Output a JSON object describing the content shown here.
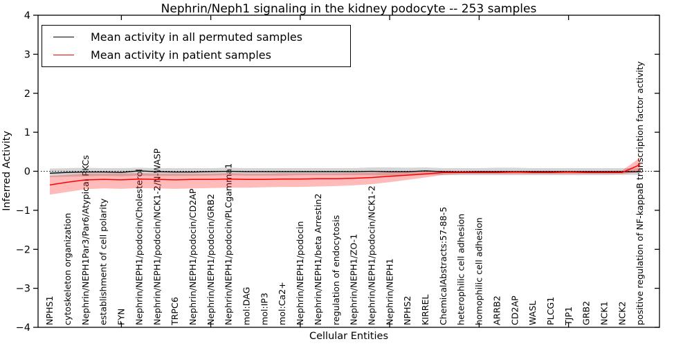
{
  "title": "Nephrin/Neph1 signaling in the kidney podocyte -- 253 samples",
  "colors": {
    "frame": "#000000",
    "permuted_line": "#000000",
    "patient_line": "#ff0000",
    "permuted_band": "rgba(125,125,125,0.32)",
    "patient_band": "rgba(255,0,0,0.27)",
    "zero_line": "#000000"
  },
  "chart_data": {
    "type": "line",
    "title": "Nephrin/Neph1 signaling in the kidney podocyte -- 253 samples",
    "xlabel": "Cellular Entities",
    "ylabel": "Inferred Activity",
    "ylim": [
      -4,
      4
    ],
    "yticks": [
      -4,
      -3,
      -2,
      -1,
      0,
      1,
      2,
      3,
      4
    ],
    "x_tick_every": 5,
    "grid": false,
    "zero_line": true,
    "legend_position": "upper left",
    "categories": [
      "NPHS1",
      "cytoskeleton organization",
      "Nephrin/NEPH1Par3/Par6/Atypical PKCs",
      "establishment of cell polarity",
      "FYN",
      "Nephrin/NEPH1/podocin/Cholesterol",
      "Nephrin/NEPH1/podocin/NCK1-2/N-WASP",
      "TRPC6",
      "Nephrin/NEPH1/podocin/CD2AP",
      "Nephrin/NEPH1/podocin/GRB2",
      "Nephrin/NEPH1/podocin/PLCgamma1",
      "mol:DAG",
      "mol:IP3",
      "mol:Ca2+",
      "Nephrin/NEPH1/podocin",
      "Nephrin/NEPH1/beta Arrestin2",
      "regulation of endocytosis",
      "Nephrin/NEPH1/ZO-1",
      "Nephrin/NEPH1/podocin/NCK1-2",
      "Nephrin/NEPH1",
      "NPHS2",
      "KIRREL",
      "ChemicalAbstracts:57-88-5",
      "heterophilic cell adhesion",
      "homophilic cell adhesion",
      "ARRB2",
      "CD2AP",
      "WASL",
      "PLCG1",
      "TJP1",
      "GRB2",
      "NCK1",
      "NCK2",
      "positive regulation of NF-kappaB transcription factor activity"
    ],
    "series": [
      {
        "name": "Mean activity in all permuted samples",
        "color": "#000000",
        "values": [
          -0.05,
          -0.03,
          -0.02,
          -0.02,
          -0.03,
          0.01,
          -0.01,
          -0.02,
          -0.02,
          -0.01,
          0.0,
          -0.01,
          -0.01,
          -0.01,
          -0.01,
          -0.01,
          -0.01,
          -0.01,
          0.0,
          -0.01,
          -0.01,
          0.01,
          -0.01,
          -0.02,
          -0.01,
          -0.01,
          -0.01,
          -0.01,
          -0.01,
          -0.01,
          -0.01,
          -0.01,
          -0.01,
          -0.01
        ],
        "band_upper": [
          0.07,
          0.08,
          0.09,
          0.08,
          0.08,
          0.09,
          0.08,
          0.08,
          0.08,
          0.08,
          0.09,
          0.08,
          0.08,
          0.08,
          0.08,
          0.08,
          0.08,
          0.08,
          0.1,
          0.1,
          0.09,
          0.1,
          0.08,
          0.08,
          0.08,
          0.09,
          0.09,
          0.08,
          0.08,
          0.08,
          0.08,
          0.08,
          0.08,
          0.08
        ],
        "band_lower": [
          -0.15,
          -0.14,
          -0.13,
          -0.12,
          -0.13,
          -0.11,
          -0.12,
          -0.12,
          -0.12,
          -0.11,
          -0.1,
          -0.11,
          -0.11,
          -0.11,
          -0.1,
          -0.1,
          -0.1,
          -0.1,
          -0.1,
          -0.11,
          -0.1,
          -0.09,
          -0.1,
          -0.1,
          -0.1,
          -0.1,
          -0.1,
          -0.1,
          -0.1,
          -0.1,
          -0.1,
          -0.1,
          -0.09,
          -0.09
        ]
      },
      {
        "name": "Mean activity in patient samples",
        "color": "#ff0000",
        "values": [
          -0.35,
          -0.28,
          -0.22,
          -0.21,
          -0.22,
          -0.2,
          -0.21,
          -0.22,
          -0.21,
          -0.21,
          -0.2,
          -0.21,
          -0.21,
          -0.2,
          -0.2,
          -0.19,
          -0.19,
          -0.18,
          -0.16,
          -0.13,
          -0.1,
          -0.07,
          -0.03,
          -0.03,
          -0.03,
          -0.03,
          -0.02,
          -0.03,
          -0.03,
          -0.02,
          -0.03,
          -0.03,
          -0.03,
          0.17
        ],
        "band_upper": [
          -0.12,
          -0.09,
          -0.06,
          -0.06,
          -0.06,
          -0.05,
          -0.06,
          -0.06,
          -0.06,
          -0.06,
          -0.05,
          -0.06,
          -0.06,
          -0.05,
          -0.05,
          -0.05,
          -0.05,
          -0.04,
          -0.03,
          -0.02,
          -0.01,
          0.0,
          0.01,
          0.01,
          0.01,
          0.01,
          0.01,
          0.01,
          0.01,
          0.01,
          0.01,
          0.01,
          0.02,
          0.35
        ],
        "band_lower": [
          -0.6,
          -0.53,
          -0.46,
          -0.44,
          -0.45,
          -0.43,
          -0.44,
          -0.45,
          -0.44,
          -0.43,
          -0.42,
          -0.42,
          -0.41,
          -0.4,
          -0.4,
          -0.39,
          -0.38,
          -0.36,
          -0.33,
          -0.28,
          -0.22,
          -0.16,
          -0.09,
          -0.07,
          -0.07,
          -0.07,
          -0.07,
          -0.07,
          -0.07,
          -0.07,
          -0.07,
          -0.07,
          -0.07,
          -0.02
        ]
      }
    ]
  },
  "legend": {
    "entries": [
      {
        "label": "Mean activity in all permuted samples",
        "color": "#000000"
      },
      {
        "label": "Mean activity in patient samples",
        "color": "#ff0000"
      }
    ]
  }
}
